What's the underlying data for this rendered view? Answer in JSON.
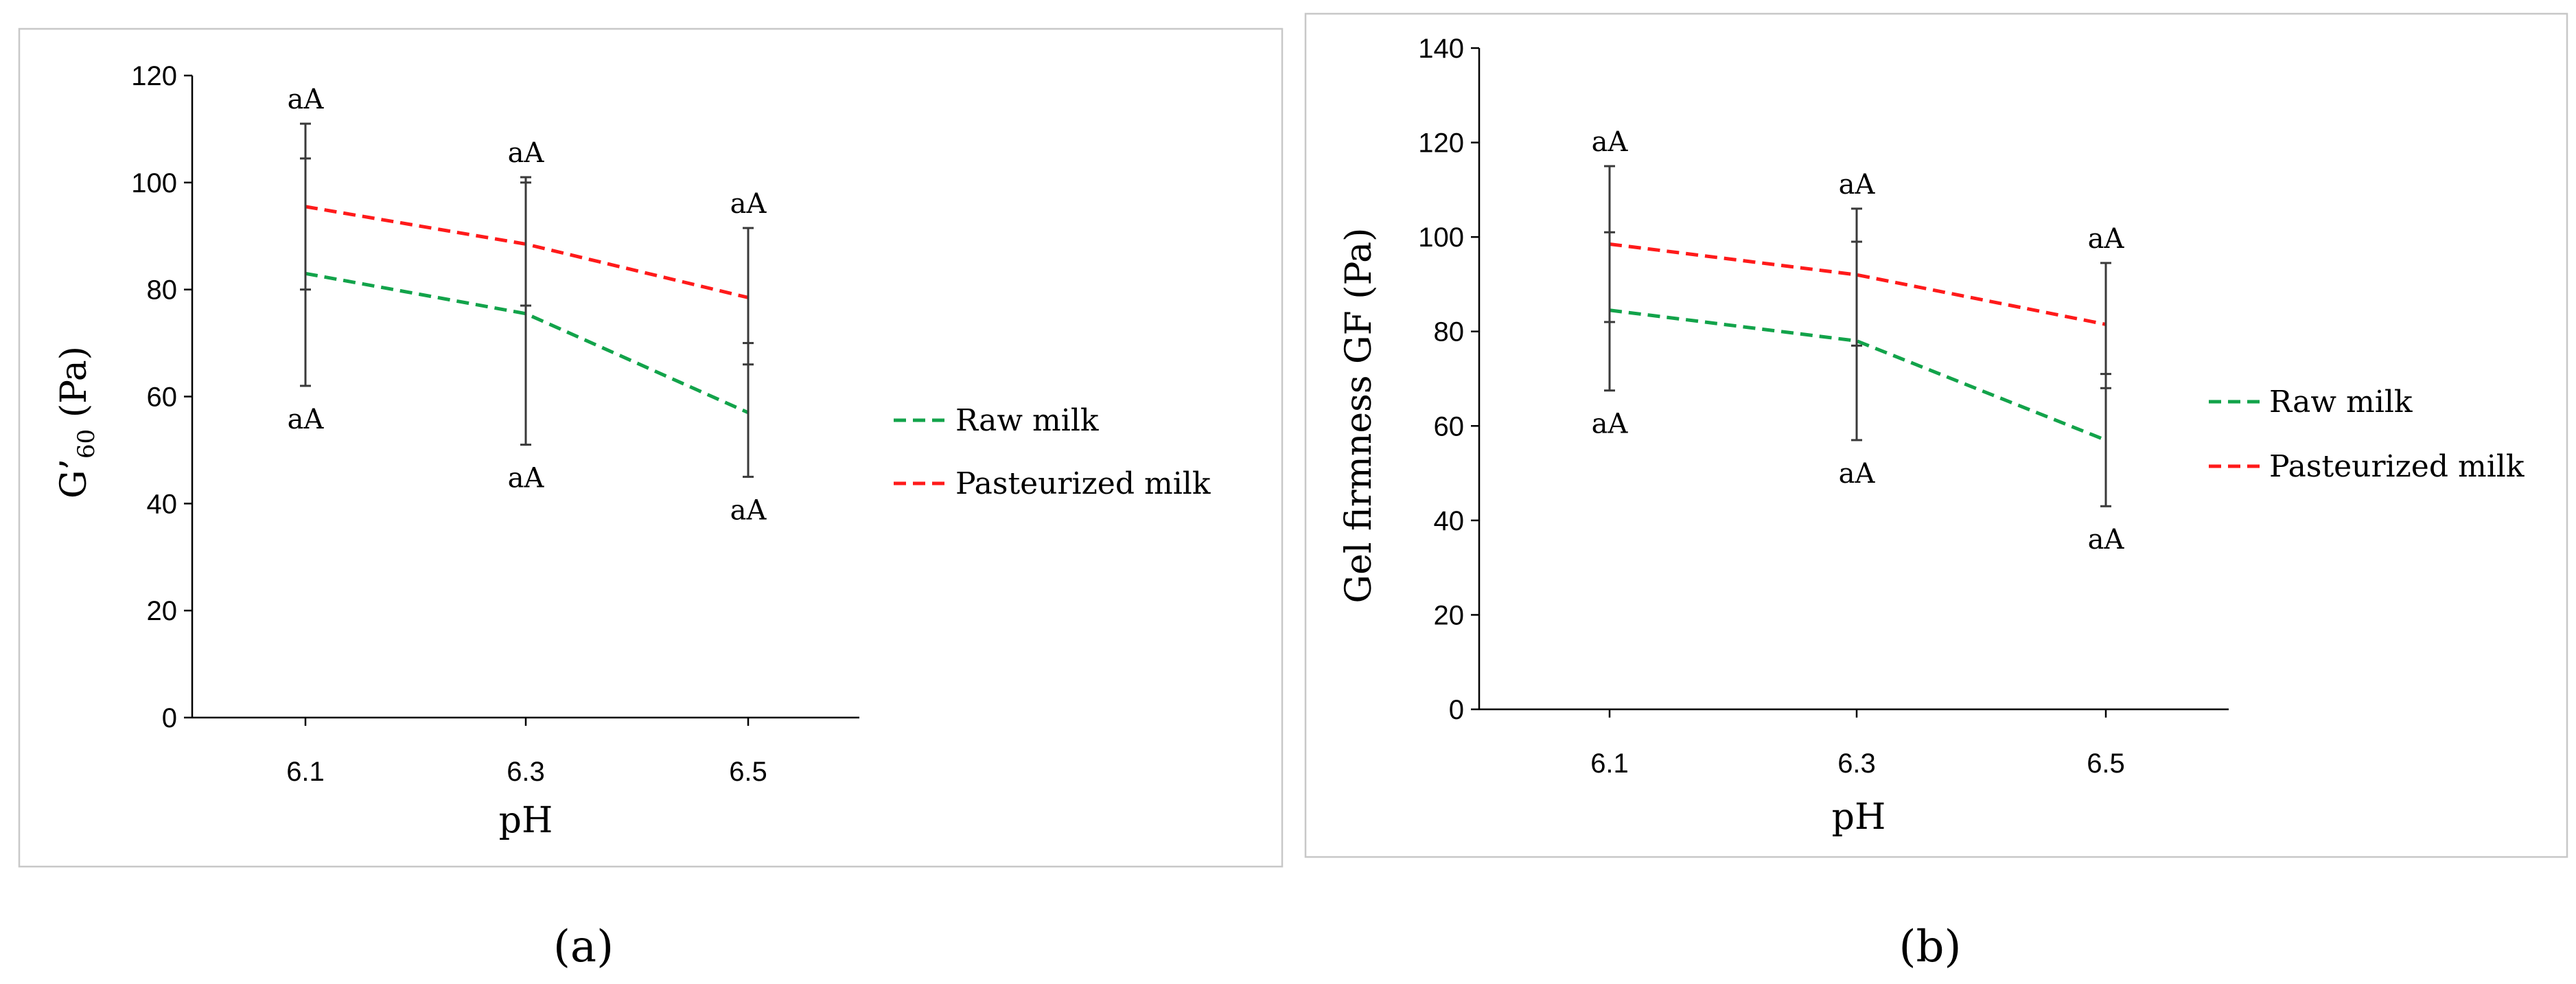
{
  "colors": {
    "raw": "#12a34a",
    "pasteurized": "#ff1a1a",
    "errorbar": "#3a3a3a"
  },
  "chart_data": [
    {
      "type": "line",
      "panel": "a",
      "caption": "(a)",
      "ylabel_main": "G’",
      "ylabel_sub": "60",
      "ylabel_unit": " (Pa)",
      "xlabel": "pH",
      "categories": [
        "6.1",
        "6.3",
        "6.5"
      ],
      "ylim": [
        0,
        120
      ],
      "yticks": [
        0,
        20,
        40,
        60,
        80,
        100,
        120
      ],
      "series": [
        {
          "name": "Raw milk",
          "color_key": "raw",
          "values": [
            83,
            75.5,
            57
          ],
          "err_low": [
            62,
            51,
            45
          ],
          "err_high": [
            104.5,
            100,
            70
          ],
          "annotations": [
            "aA",
            "aA",
            "aA"
          ],
          "annotation_position": "below"
        },
        {
          "name": "Pasteurized milk",
          "color_key": "pasteurized",
          "values": [
            95.5,
            88.5,
            78.5
          ],
          "err_low": [
            80,
            77,
            66
          ],
          "err_high": [
            111,
            101,
            91.5
          ],
          "annotations": [
            "aA",
            "aA",
            "aA"
          ],
          "annotation_position": "above"
        }
      ],
      "legend": [
        "Raw milk",
        "Pasteurized milk"
      ],
      "legend_position": "right"
    },
    {
      "type": "line",
      "panel": "b",
      "caption": "(b)",
      "ylabel_main": "Gel firmness GF (Pa)",
      "ylabel_sub": "",
      "ylabel_unit": "",
      "xlabel": "pH",
      "categories": [
        "6.1",
        "6.3",
        "6.5"
      ],
      "ylim": [
        0,
        140
      ],
      "yticks": [
        0,
        20,
        40,
        60,
        80,
        100,
        120,
        140
      ],
      "series": [
        {
          "name": "Raw milk",
          "color_key": "raw",
          "values": [
            84.5,
            78,
            57
          ],
          "err_low": [
            67.5,
            57,
            43
          ],
          "err_high": [
            101,
            99,
            71
          ],
          "annotations": [
            "aA",
            "aA",
            "aA"
          ],
          "annotation_position": "below"
        },
        {
          "name": "Pasteurized milk",
          "color_key": "pasteurized",
          "values": [
            98.5,
            92,
            81.5
          ],
          "err_low": [
            82,
            77,
            68
          ],
          "err_high": [
            115,
            106,
            94.5
          ],
          "annotations": [
            "aA",
            "aA",
            "aA"
          ],
          "annotation_position": "above"
        }
      ],
      "legend": [
        "Raw milk",
        "Pasteurized milk"
      ],
      "legend_position": "right"
    }
  ]
}
